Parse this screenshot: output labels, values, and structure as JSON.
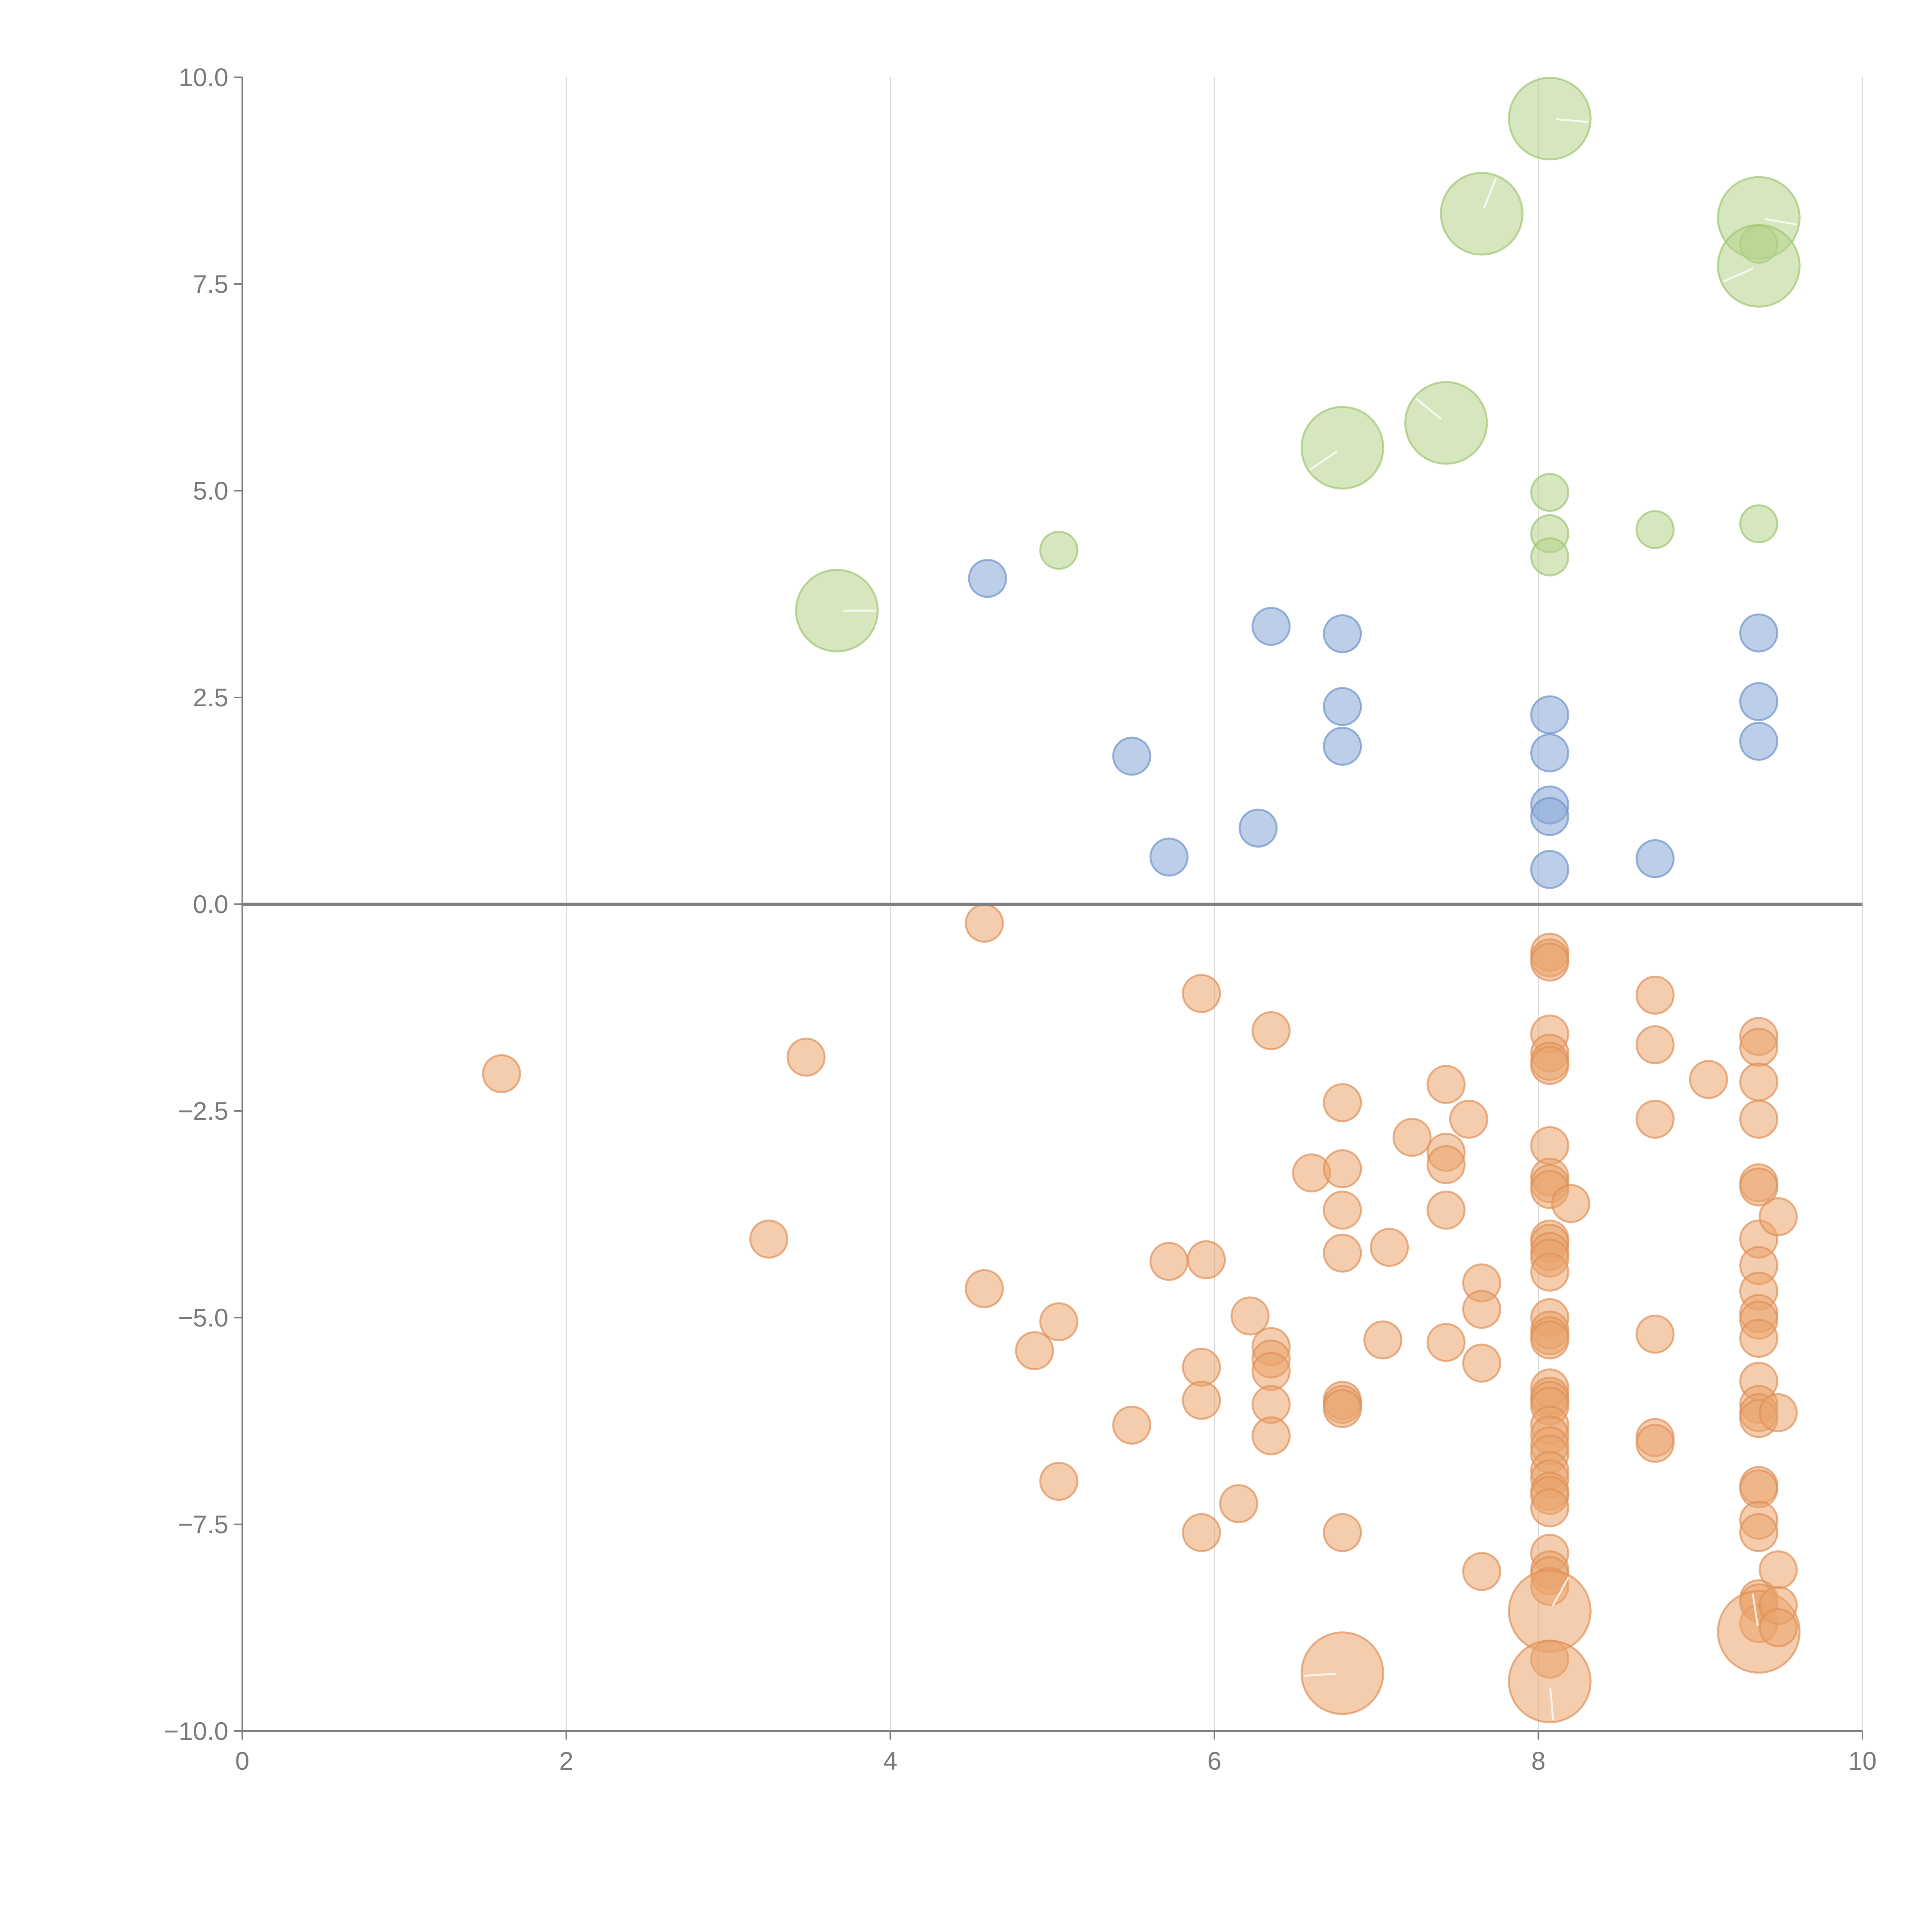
{
  "chart_data": {
    "type": "scatter",
    "title": "",
    "xlabel": "",
    "ylabel": "",
    "xlim": [
      0,
      10
    ],
    "ylim": [
      -10,
      10
    ],
    "x_ticks": [
      {
        "value": 0,
        "label": "0"
      },
      {
        "value": 2,
        "label": "2"
      },
      {
        "value": 4,
        "label": "4"
      },
      {
        "value": 6,
        "label": "6"
      },
      {
        "value": 8,
        "label": "8"
      },
      {
        "value": 10,
        "label": "10"
      }
    ],
    "y_ticks": [
      {
        "value": 10,
        "label": "10.0"
      },
      {
        "value": 7.5,
        "label": "7.5"
      },
      {
        "value": 5,
        "label": "5.0"
      },
      {
        "value": 2.5,
        "label": "2.5"
      },
      {
        "value": 0,
        "label": "0.0"
      },
      {
        "value": -2.5,
        "label": "−2.5"
      },
      {
        "value": -5,
        "label": "−5.0"
      },
      {
        "value": -7.5,
        "label": "−7.5"
      },
      {
        "value": -10,
        "label": "−10.0"
      }
    ],
    "grid": "vertical",
    "legend": "none",
    "series": [
      {
        "name": "green",
        "color": "#b5d38d",
        "stroke": "#9fc46f",
        "points": [
          [
            3.67,
            3.55,
            2.2
          ],
          [
            5.04,
            4.28,
            1
          ],
          [
            6.79,
            5.52,
            2.2
          ],
          [
            7.43,
            5.82,
            2.2
          ],
          [
            7.65,
            8.35,
            2.2
          ],
          [
            8.07,
            9.5,
            2.2
          ],
          [
            8.07,
            4.98,
            1
          ],
          [
            8.07,
            4.48,
            1
          ],
          [
            8.07,
            4.2,
            1
          ],
          [
            8.72,
            4.53,
            1
          ],
          [
            9.36,
            8.3,
            2.2
          ],
          [
            9.36,
            7.98,
            1
          ],
          [
            9.36,
            7.72,
            2.2
          ],
          [
            9.36,
            4.6,
            1
          ]
        ]
      },
      {
        "name": "blue",
        "color": "#87a7d6",
        "stroke": "#6f93cb",
        "points": [
          [
            4.6,
            3.94,
            1
          ],
          [
            5.49,
            1.79,
            1
          ],
          [
            5.72,
            0.57,
            1
          ],
          [
            6.27,
            0.92,
            1
          ],
          [
            6.35,
            3.36,
            1
          ],
          [
            6.79,
            3.27,
            1
          ],
          [
            6.79,
            2.39,
            1
          ],
          [
            6.79,
            1.91,
            1
          ],
          [
            8.07,
            2.29,
            1
          ],
          [
            8.07,
            1.83,
            1
          ],
          [
            8.07,
            1.2,
            1
          ],
          [
            8.07,
            1.06,
            1
          ],
          [
            8.07,
            0.42,
            1
          ],
          [
            8.72,
            0.55,
            1
          ],
          [
            9.36,
            3.28,
            1
          ],
          [
            9.36,
            2.45,
            1
          ],
          [
            9.36,
            1.97,
            1
          ]
        ]
      },
      {
        "name": "orange",
        "color": "#eaa46b",
        "stroke": "#df9058",
        "points": [
          [
            1.6,
            -2.05,
            1
          ],
          [
            3.25,
            -4.05,
            1
          ],
          [
            3.48,
            -1.85,
            1
          ],
          [
            4.58,
            -0.23,
            1
          ],
          [
            4.58,
            -4.65,
            1
          ],
          [
            4.89,
            -5.4,
            1
          ],
          [
            5.04,
            -5.05,
            1
          ],
          [
            5.04,
            -6.98,
            1
          ],
          [
            5.49,
            -6.3,
            1
          ],
          [
            5.72,
            -4.32,
            1
          ],
          [
            5.92,
            -1.08,
            1
          ],
          [
            5.92,
            -5.6,
            1
          ],
          [
            5.92,
            -6.0,
            1
          ],
          [
            5.92,
            -7.6,
            1
          ],
          [
            5.95,
            -4.3,
            1
          ],
          [
            6.15,
            -7.25,
            1
          ],
          [
            6.22,
            -4.98,
            1
          ],
          [
            6.35,
            -1.53,
            1
          ],
          [
            6.35,
            -5.35,
            1
          ],
          [
            6.35,
            -5.5,
            1
          ],
          [
            6.35,
            -5.65,
            1
          ],
          [
            6.35,
            -6.05,
            1
          ],
          [
            6.35,
            -6.43,
            1
          ],
          [
            6.6,
            -3.25,
            1
          ],
          [
            6.79,
            -2.4,
            1
          ],
          [
            6.79,
            -3.2,
            1
          ],
          [
            6.79,
            -3.7,
            1
          ],
          [
            6.79,
            -4.22,
            1
          ],
          [
            6.79,
            -6.0,
            1
          ],
          [
            6.79,
            -6.05,
            1
          ],
          [
            6.79,
            -6.1,
            1
          ],
          [
            6.79,
            -7.6,
            1
          ],
          [
            6.79,
            -9.3,
            2.2
          ],
          [
            7.04,
            -5.27,
            1
          ],
          [
            7.08,
            -4.15,
            1
          ],
          [
            7.22,
            -2.82,
            1
          ],
          [
            7.43,
            -2.18,
            1
          ],
          [
            7.43,
            -3.0,
            1
          ],
          [
            7.43,
            -3.15,
            1
          ],
          [
            7.43,
            -3.7,
            1
          ],
          [
            7.43,
            -5.3,
            1
          ],
          [
            7.57,
            -2.6,
            1
          ],
          [
            7.65,
            -4.58,
            1
          ],
          [
            7.65,
            -4.9,
            1
          ],
          [
            7.65,
            -5.55,
            1
          ],
          [
            7.65,
            -8.07,
            1
          ],
          [
            8.07,
            -0.58,
            1
          ],
          [
            8.07,
            -0.65,
            1
          ],
          [
            8.07,
            -0.7,
            1
          ],
          [
            8.07,
            -1.57,
            1
          ],
          [
            8.07,
            -1.8,
            1
          ],
          [
            8.07,
            -1.9,
            1
          ],
          [
            8.07,
            -1.95,
            1
          ],
          [
            8.07,
            -2.92,
            1
          ],
          [
            8.07,
            -3.3,
            1
          ],
          [
            8.07,
            -3.38,
            1
          ],
          [
            8.07,
            -3.45,
            1
          ],
          [
            8.07,
            -4.05,
            1
          ],
          [
            8.07,
            -4.1,
            1
          ],
          [
            8.07,
            -4.2,
            1
          ],
          [
            8.07,
            -4.28,
            1
          ],
          [
            8.07,
            -4.45,
            1
          ],
          [
            8.07,
            -5.0,
            1
          ],
          [
            8.07,
            -5.15,
            1
          ],
          [
            8.07,
            -5.22,
            1
          ],
          [
            8.07,
            -5.27,
            1
          ],
          [
            8.07,
            -5.85,
            1
          ],
          [
            8.07,
            -5.95,
            1
          ],
          [
            8.07,
            -6.0,
            1
          ],
          [
            8.07,
            -6.07,
            1
          ],
          [
            8.07,
            -6.3,
            1
          ],
          [
            8.07,
            -6.42,
            1
          ],
          [
            8.07,
            -6.55,
            1
          ],
          [
            8.07,
            -6.65,
            1
          ],
          [
            8.07,
            -6.85,
            1
          ],
          [
            8.07,
            -6.95,
            1
          ],
          [
            8.07,
            -7.1,
            1
          ],
          [
            8.07,
            -7.15,
            1
          ],
          [
            8.07,
            -7.3,
            1
          ],
          [
            8.07,
            -7.85,
            1
          ],
          [
            8.07,
            -8.05,
            1
          ],
          [
            8.07,
            -8.12,
            1
          ],
          [
            8.07,
            -8.25,
            1
          ],
          [
            8.07,
            -8.55,
            2.2
          ],
          [
            8.07,
            -9.13,
            1
          ],
          [
            8.07,
            -9.4,
            2.2
          ],
          [
            8.2,
            -3.62,
            1
          ],
          [
            8.72,
            -1.1,
            1
          ],
          [
            8.72,
            -1.7,
            1
          ],
          [
            8.72,
            -2.6,
            1
          ],
          [
            8.72,
            -5.2,
            1
          ],
          [
            8.72,
            -6.45,
            1
          ],
          [
            8.72,
            -6.52,
            1
          ],
          [
            9.05,
            -2.12,
            1
          ],
          [
            9.36,
            -1.6,
            1
          ],
          [
            9.36,
            -1.73,
            1
          ],
          [
            9.36,
            -2.15,
            1
          ],
          [
            9.36,
            -2.6,
            1
          ],
          [
            9.36,
            -3.37,
            1
          ],
          [
            9.36,
            -3.42,
            1
          ],
          [
            9.36,
            -4.05,
            1
          ],
          [
            9.36,
            -4.37,
            1
          ],
          [
            9.36,
            -4.68,
            1
          ],
          [
            9.36,
            -4.95,
            1
          ],
          [
            9.36,
            -5.03,
            1
          ],
          [
            9.36,
            -5.25,
            1
          ],
          [
            9.36,
            -5.77,
            1
          ],
          [
            9.36,
            -6.05,
            1
          ],
          [
            9.36,
            -6.15,
            1
          ],
          [
            9.36,
            -6.22,
            1
          ],
          [
            9.36,
            -7.03,
            1
          ],
          [
            9.36,
            -7.07,
            1
          ],
          [
            9.36,
            -7.45,
            1
          ],
          [
            9.36,
            -7.6,
            1
          ],
          [
            9.36,
            -8.4,
            1
          ],
          [
            9.36,
            -8.45,
            1
          ],
          [
            9.36,
            -8.7,
            1
          ],
          [
            9.36,
            -8.8,
            2.2
          ],
          [
            9.48,
            -3.78,
            1
          ],
          [
            9.48,
            -6.15,
            1
          ],
          [
            9.48,
            -8.05,
            1
          ],
          [
            9.48,
            -8.48,
            1
          ],
          [
            9.48,
            -8.75,
            1
          ]
        ]
      }
    ]
  }
}
